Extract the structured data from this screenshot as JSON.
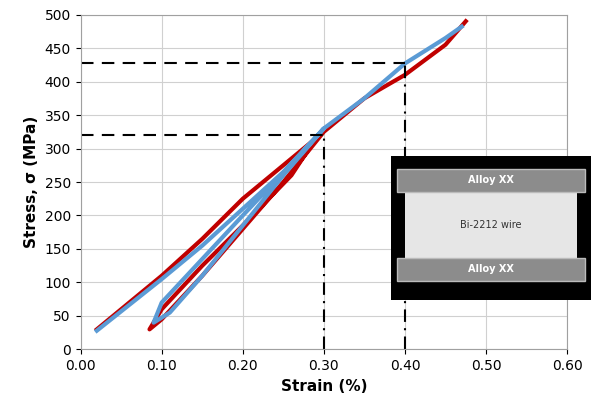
{
  "chart_data": {
    "type": "line",
    "x_label": "Strain (%)",
    "y_label": "Stress, σ (MPa)",
    "series": [
      {
        "color": "#c00000",
        "x": [
          0.02,
          0.1,
          0.15,
          0.2,
          0.25,
          0.29,
          0.26,
          0.2,
          0.15,
          0.1,
          0.085,
          0.1,
          0.15,
          0.2,
          0.25,
          0.3,
          0.35,
          0.4,
          0.45,
          0.475
        ],
        "values": [
          30,
          110,
          165,
          225,
          275,
          315,
          260,
          185,
          125,
          60,
          30,
          45,
          110,
          180,
          250,
          325,
          375,
          410,
          455,
          490
        ]
      },
      {
        "color": "#5b9bd5",
        "x": [
          0.02,
          0.1,
          0.15,
          0.2,
          0.25,
          0.3,
          0.27,
          0.2,
          0.15,
          0.1,
          0.09,
          0.11,
          0.15,
          0.2,
          0.25,
          0.3,
          0.35,
          0.4,
          0.45,
          0.47
        ],
        "values": [
          28,
          105,
          155,
          210,
          265,
          330,
          290,
          200,
          135,
          70,
          40,
          55,
          110,
          185,
          260,
          330,
          375,
          427,
          465,
          482
        ]
      }
    ],
    "reference_lines": [
      {
        "x": 0.3,
        "y": 320
      },
      {
        "x": 0.4,
        "y": 427
      }
    ],
    "xlim": [
      0,
      0.6
    ],
    "xticks": [
      {
        "value": 0,
        "label": "0.00"
      },
      {
        "value": 0.1,
        "label": "0.10"
      },
      {
        "value": 0.2,
        "label": "0.20"
      },
      {
        "value": 0.3,
        "label": "0.30"
      },
      {
        "value": 0.4,
        "label": "0.40"
      },
      {
        "value": 0.5,
        "label": "0.50"
      },
      {
        "value": 0.6,
        "label": "0.60"
      }
    ],
    "ylim": [
      0,
      500
    ],
    "yticks": [
      0,
      50,
      100,
      150,
      200,
      250,
      300,
      350,
      400,
      450,
      500
    ],
    "grid": true,
    "inset": {
      "top_label": "Alloy XX",
      "center_label": "Bi-2212 wire",
      "bottom_label": "Alloy XX"
    }
  }
}
